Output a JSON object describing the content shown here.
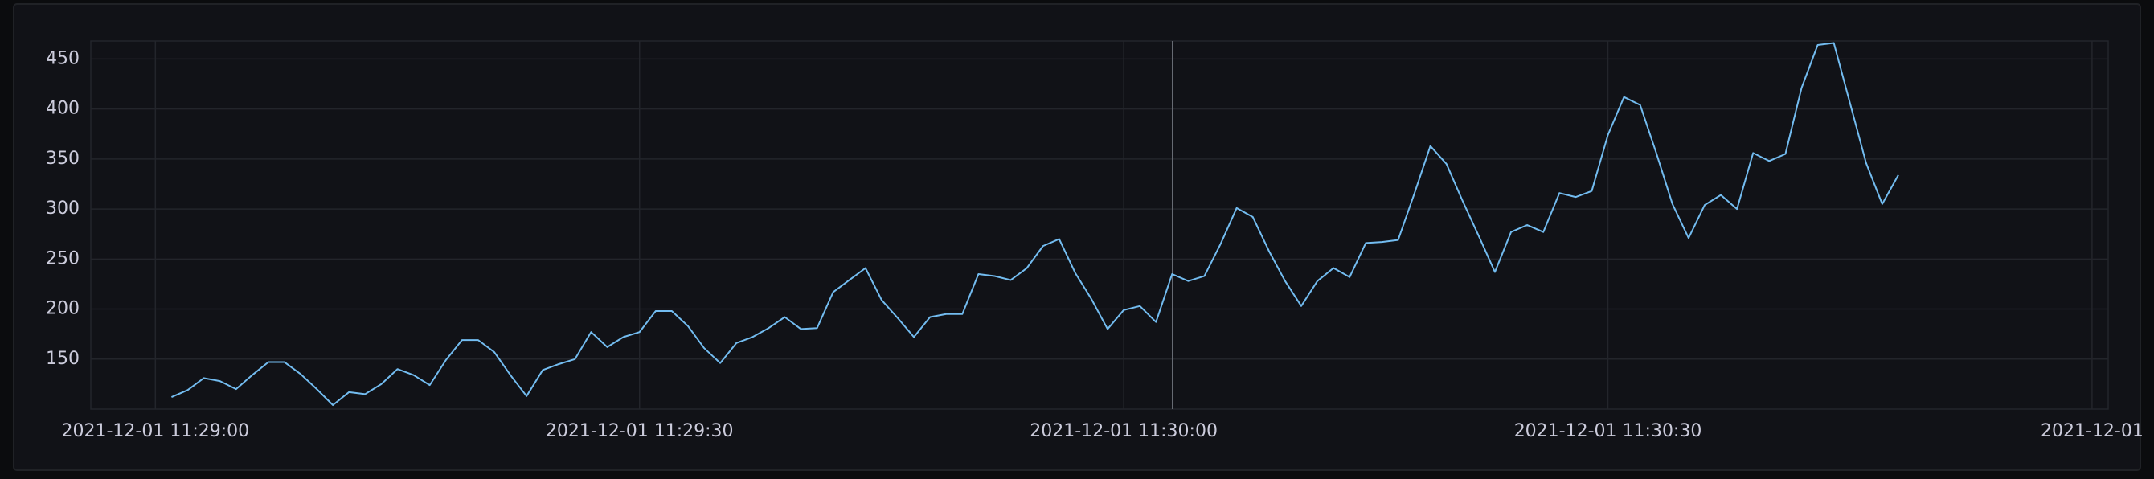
{
  "chart_data": {
    "type": "line",
    "x": [
      "2021-12-01 11:29:01",
      "2021-12-01 11:29:02",
      "2021-12-01 11:29:03",
      "2021-12-01 11:29:04",
      "2021-12-01 11:29:05",
      "2021-12-01 11:29:06",
      "2021-12-01 11:29:07",
      "2021-12-01 11:29:08",
      "2021-12-01 11:29:09",
      "2021-12-01 11:29:10",
      "2021-12-01 11:29:11",
      "2021-12-01 11:29:12",
      "2021-12-01 11:29:13",
      "2021-12-01 11:29:14",
      "2021-12-01 11:29:15",
      "2021-12-01 11:29:16",
      "2021-12-01 11:29:17",
      "2021-12-01 11:29:18",
      "2021-12-01 11:29:19",
      "2021-12-01 11:29:20",
      "2021-12-01 11:29:21",
      "2021-12-01 11:29:22",
      "2021-12-01 11:29:23",
      "2021-12-01 11:29:24",
      "2021-12-01 11:29:25",
      "2021-12-01 11:29:26",
      "2021-12-01 11:29:27",
      "2021-12-01 11:29:28",
      "2021-12-01 11:29:29",
      "2021-12-01 11:29:30",
      "2021-12-01 11:29:31",
      "2021-12-01 11:29:32",
      "2021-12-01 11:29:33",
      "2021-12-01 11:29:34",
      "2021-12-01 11:29:35",
      "2021-12-01 11:29:36",
      "2021-12-01 11:29:37",
      "2021-12-01 11:29:38",
      "2021-12-01 11:29:39",
      "2021-12-01 11:29:40",
      "2021-12-01 11:29:41",
      "2021-12-01 11:29:42",
      "2021-12-01 11:29:43",
      "2021-12-01 11:29:44",
      "2021-12-01 11:29:45",
      "2021-12-01 11:29:46",
      "2021-12-01 11:29:47",
      "2021-12-01 11:29:48",
      "2021-12-01 11:29:49",
      "2021-12-01 11:29:50",
      "2021-12-01 11:29:51",
      "2021-12-01 11:29:52",
      "2021-12-01 11:29:53",
      "2021-12-01 11:29:54",
      "2021-12-01 11:29:55",
      "2021-12-01 11:29:56",
      "2021-12-01 11:29:57",
      "2021-12-01 11:29:58",
      "2021-12-01 11:29:59",
      "2021-12-01 11:30:00",
      "2021-12-01 11:30:01",
      "2021-12-01 11:30:02",
      "2021-12-01 11:30:03",
      "2021-12-01 11:30:04",
      "2021-12-01 11:30:05",
      "2021-12-01 11:30:06",
      "2021-12-01 11:30:07",
      "2021-12-01 11:30:08",
      "2021-12-01 11:30:09",
      "2021-12-01 11:30:10",
      "2021-12-01 11:30:11",
      "2021-12-01 11:30:12",
      "2021-12-01 11:30:13",
      "2021-12-01 11:30:14",
      "2021-12-01 11:30:15",
      "2021-12-01 11:30:16",
      "2021-12-01 11:30:17",
      "2021-12-01 11:30:18",
      "2021-12-01 11:30:19",
      "2021-12-01 11:30:20",
      "2021-12-01 11:30:21",
      "2021-12-01 11:30:22",
      "2021-12-01 11:30:23",
      "2021-12-01 11:30:24",
      "2021-12-01 11:30:25",
      "2021-12-01 11:30:26",
      "2021-12-01 11:30:27",
      "2021-12-01 11:30:28",
      "2021-12-01 11:30:29",
      "2021-12-01 11:30:30",
      "2021-12-01 11:30:31",
      "2021-12-01 11:30:32",
      "2021-12-01 11:30:33",
      "2021-12-01 11:30:34",
      "2021-12-01 11:30:35",
      "2021-12-01 11:30:36",
      "2021-12-01 11:30:37",
      "2021-12-01 11:30:38",
      "2021-12-01 11:30:39",
      "2021-12-01 11:30:40",
      "2021-12-01 11:30:41",
      "2021-12-01 11:30:42",
      "2021-12-01 11:30:43",
      "2021-12-01 11:30:44",
      "2021-12-01 11:30:45",
      "2021-12-01 11:30:46",
      "2021-12-01 11:30:47",
      "2021-12-01 11:30:48"
    ],
    "values": [
      112,
      119,
      131,
      128,
      120,
      134,
      147,
      147,
      135,
      120,
      104,
      117,
      115,
      125,
      140,
      134,
      124,
      149,
      169,
      169,
      157,
      134,
      113,
      139,
      145,
      150,
      177,
      162,
      172,
      177,
      198,
      198,
      183,
      161,
      146,
      166,
      172,
      181,
      192,
      180,
      181,
      217,
      229,
      241,
      209,
      191,
      172,
      192,
      195,
      195,
      235,
      233,
      229,
      241,
      263,
      270,
      236,
      210,
      180,
      199,
      203,
      187,
      235,
      228,
      233,
      265,
      301,
      292,
      258,
      228,
      203,
      228,
      241,
      232,
      266,
      267,
      269,
      315,
      363,
      345,
      308,
      273,
      237,
      277,
      284,
      277,
      316,
      312,
      318,
      374,
      412,
      404,
      356,
      305,
      271,
      304,
      314,
      300,
      356,
      348,
      355,
      421,
      464,
      466,
      406,
      346,
      305,
      334
    ],
    "color": "#73bcf0",
    "xlim": [
      "2021-12-01 11:28:56",
      "2021-12-01 11:31:01"
    ],
    "xticks": [
      "2021-12-01 11:29:00",
      "2021-12-01 11:29:30",
      "2021-12-01 11:30:00",
      "2021-12-01 11:30:30",
      {
        "value": "2021-12-01 11:31:00",
        "label": "2021-12-01"
      }
    ],
    "ylim": [
      100,
      468
    ],
    "yticks": [
      150,
      200,
      250,
      300,
      350,
      400,
      450
    ],
    "grid": true
  }
}
